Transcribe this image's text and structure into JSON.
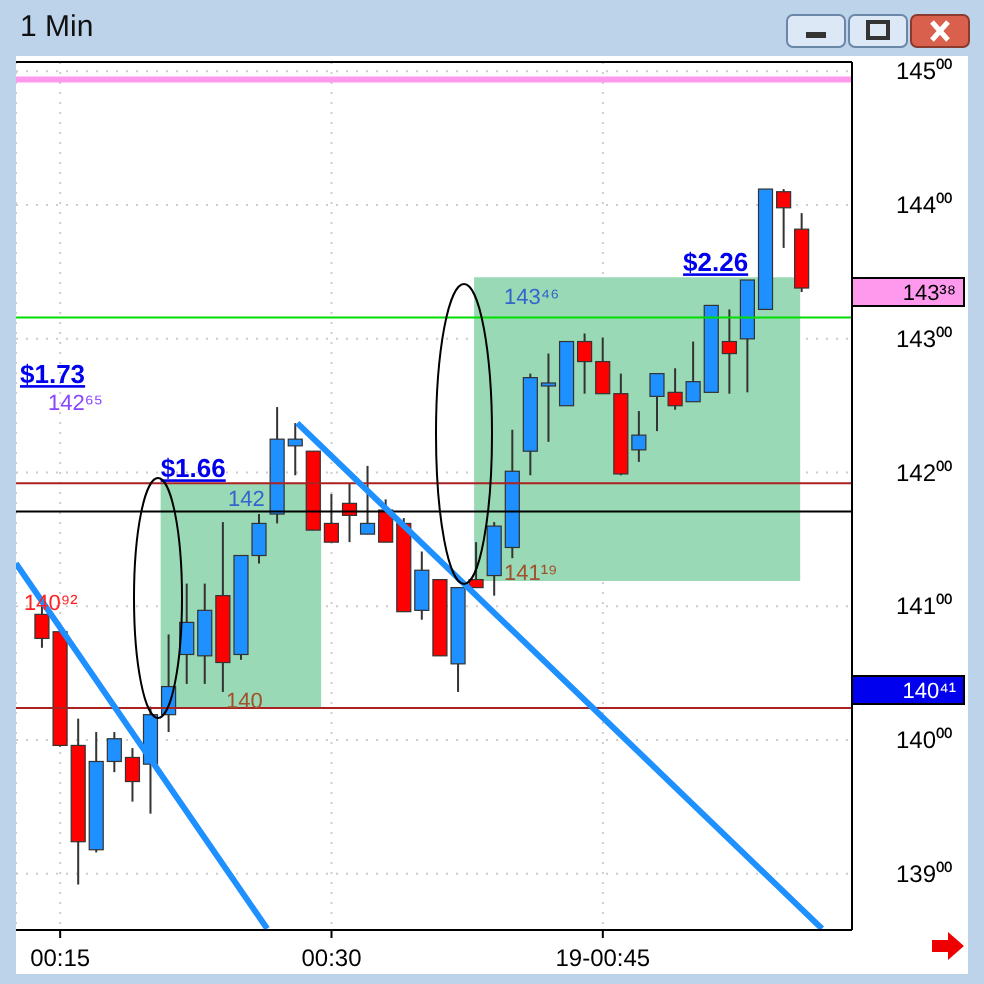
{
  "chart_data": {
    "type": "candlestick",
    "title": "1 Min",
    "x": [
      0.2333,
      0.25,
      0.2667,
      0.2833,
      0.3,
      0.3167,
      0.3333,
      0.35,
      0.3667,
      0.3833,
      0.4,
      0.4167,
      0.4333,
      0.45,
      0.4667,
      0.4833,
      0.5,
      0.5167,
      0.5333,
      0.55,
      0.5667,
      0.5833,
      0.6,
      0.6167,
      0.6333,
      0.65,
      0.6667,
      0.6833,
      0.7,
      0.7167,
      0.7333,
      0.75,
      0.7667,
      0.7833,
      0.8,
      0.8167,
      0.8333,
      0.85,
      0.8667,
      0.8833,
      0.9,
      0.9167,
      0.9333
    ],
    "ohlc": [
      [
        140.94,
        141.02,
        140.69,
        140.76
      ],
      [
        140.81,
        140.83,
        139.95,
        139.96
      ],
      [
        139.96,
        140.16,
        138.92,
        139.24
      ],
      [
        139.18,
        140.06,
        139.16,
        139.84
      ],
      [
        139.84,
        140.06,
        139.76,
        140.01
      ],
      [
        139.87,
        139.94,
        139.54,
        139.69
      ],
      [
        139.82,
        140.25,
        139.45,
        140.19
      ],
      [
        140.19,
        140.79,
        140.06,
        140.4
      ],
      [
        140.64,
        141.17,
        140.42,
        140.88
      ],
      [
        140.63,
        141.17,
        140.42,
        140.97
      ],
      [
        141.08,
        141.63,
        140.36,
        140.58
      ],
      [
        140.64,
        141.38,
        140.6,
        141.38
      ],
      [
        141.38,
        141.69,
        141.32,
        141.62
      ],
      [
        141.69,
        142.49,
        141.62,
        142.25
      ],
      [
        142.2,
        142.37,
        141.98,
        142.25
      ],
      [
        142.16,
        142.16,
        141.57,
        141.57
      ],
      [
        141.62,
        141.84,
        141.48,
        141.48
      ],
      [
        141.77,
        141.92,
        141.48,
        141.68
      ],
      [
        141.54,
        142.05,
        141.54,
        141.62
      ],
      [
        141.72,
        141.8,
        141.48,
        141.48
      ],
      [
        141.62,
        141.66,
        140.96,
        140.96
      ],
      [
        140.97,
        141.41,
        140.9,
        141.27
      ],
      [
        141.2,
        141.2,
        140.63,
        140.63
      ],
      [
        140.57,
        141.14,
        140.36,
        141.14
      ],
      [
        141.2,
        141.48,
        141.14,
        141.14
      ],
      [
        141.23,
        141.63,
        141.08,
        141.6
      ],
      [
        141.44,
        142.32,
        141.36,
        142.01
      ],
      [
        142.16,
        142.74,
        141.98,
        142.71
      ],
      [
        142.66,
        142.89,
        142.23,
        142.67
      ],
      [
        142.5,
        142.98,
        142.5,
        142.98
      ],
      [
        142.98,
        143.04,
        142.59,
        142.83
      ],
      [
        142.83,
        143.01,
        142.59,
        142.59
      ],
      [
        142.59,
        142.74,
        141.98,
        141.99
      ],
      [
        142.17,
        142.46,
        142.08,
        142.28
      ],
      [
        142.57,
        142.74,
        142.31,
        142.74
      ],
      [
        142.6,
        142.78,
        142.47,
        142.5
      ],
      [
        142.53,
        142.98,
        142.53,
        142.68
      ],
      [
        142.6,
        143.25,
        142.6,
        143.25
      ],
      [
        142.98,
        143.22,
        142.59,
        142.89
      ],
      [
        143.0,
        143.44,
        142.6,
        143.44
      ],
      [
        143.22,
        144.12,
        143.22,
        144.12
      ],
      [
        144.1,
        144.12,
        143.68,
        143.98
      ],
      [
        143.82,
        143.94,
        143.35,
        143.38
      ]
    ],
    "series": [
      {
        "type": "line",
        "color": "#1e90ff",
        "x": [
          0.2093,
          0.4407
        ],
        "values": [
          141.32,
          138.59
        ]
      },
      {
        "type": "line",
        "color": "#1e90ff",
        "x": [
          0.4685,
          0.9519
        ],
        "values": [
          142.37,
          138.59
        ]
      }
    ],
    "xlim": [
      0.2093,
      0.9796
    ],
    "xticks": [
      {
        "value": 0.25,
        "label": "00:15"
      },
      {
        "value": 0.5,
        "label": "00:30"
      },
      {
        "value": 0.75,
        "label": "19-00:45"
      }
    ],
    "ylim": [
      138.58,
      145.07
    ],
    "yticks": [
      {
        "value": 139,
        "label": "139⁰⁰"
      },
      {
        "value": 140,
        "label": "140⁰⁰"
      },
      {
        "value": 141,
        "label": "141⁰⁰"
      },
      {
        "value": 142,
        "label": "142⁰⁰"
      },
      {
        "value": 143,
        "label": "143⁰⁰"
      },
      {
        "value": 144,
        "label": "144⁰⁰"
      },
      {
        "value": 145,
        "label": "145⁰⁰"
      }
    ],
    "grid": true,
    "ref_lines": [
      {
        "axis": "y",
        "value": 144.94,
        "color": "#ff99ee"
      },
      {
        "axis": "y",
        "value": 143.16,
        "color": "#00dd00"
      },
      {
        "axis": "y",
        "value": 141.92,
        "color": "#aa2222"
      },
      {
        "axis": "y",
        "value": 141.71,
        "color": "#000000"
      },
      {
        "axis": "y",
        "value": 140.24,
        "color": "#aa2222"
      }
    ],
    "bands": [
      {
        "axis": "y",
        "from": 140.24,
        "to": 141.92,
        "color": "#99d9b5",
        "label": "$1.66"
      },
      {
        "axis": "y",
        "from": 141.19,
        "to": 143.46,
        "color": "#99d9b5",
        "label": "$2.26"
      }
    ],
    "annotations": [
      "$1.73",
      "142⁶⁵",
      "142",
      "140",
      "143⁴⁶",
      "141¹⁹",
      "140⁹²",
      "143³⁸",
      "140⁴¹"
    ]
  }
}
